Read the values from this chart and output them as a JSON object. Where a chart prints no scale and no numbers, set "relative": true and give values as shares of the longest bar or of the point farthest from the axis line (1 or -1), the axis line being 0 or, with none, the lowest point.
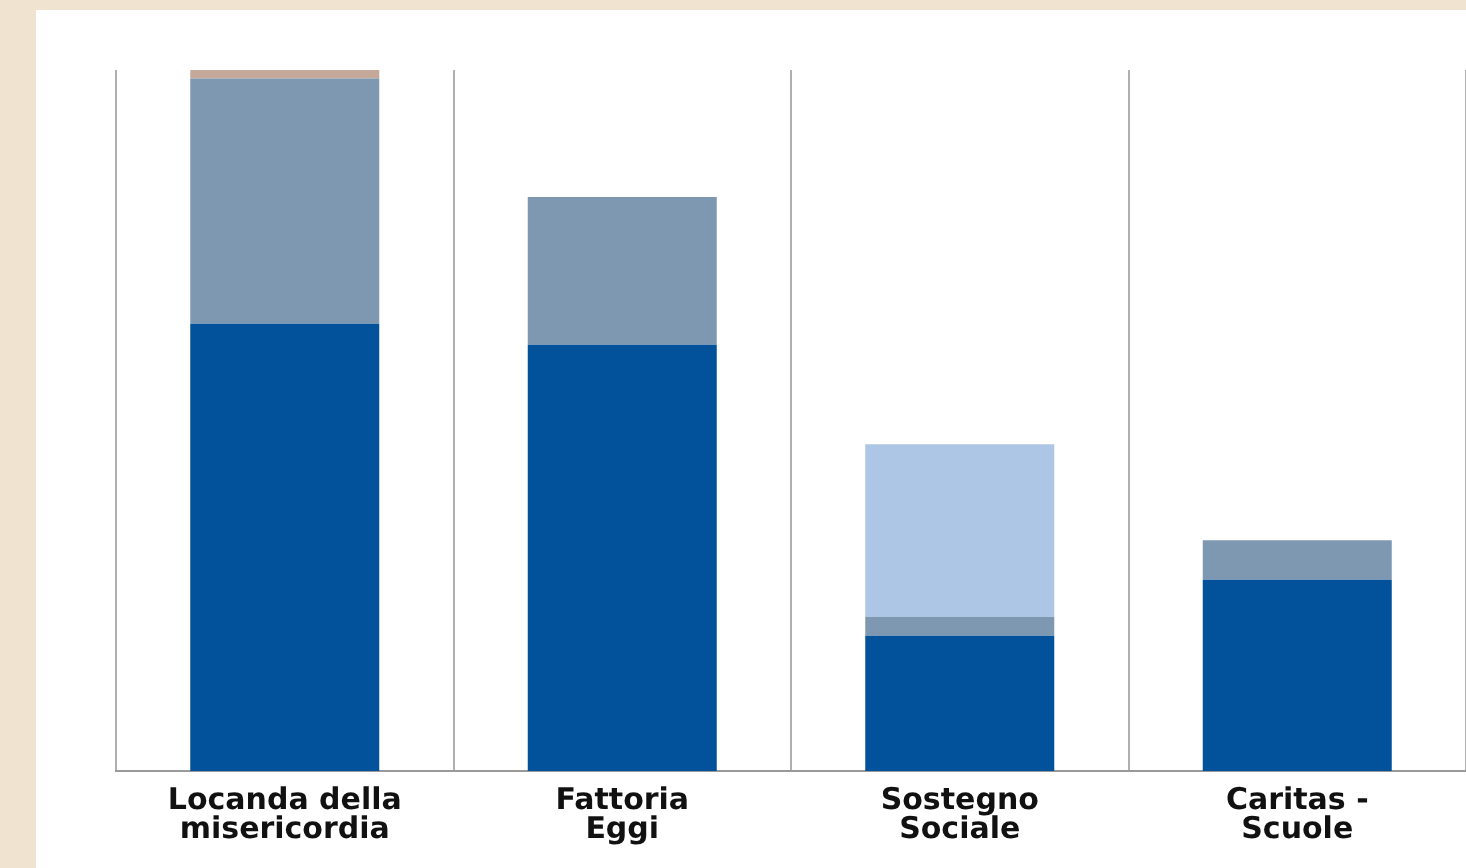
{
  "chart_data": {
    "type": "bar",
    "stacked": true,
    "relative": true,
    "grid": "x",
    "legend": false,
    "categories": [
      "Locanda della misericordia",
      "Fattoria Eggi",
      "Sostegno Sociale",
      "Caritas - Scuole"
    ],
    "series": [
      {
        "color": "#02519b",
        "values": [
          0.638,
          0.608,
          0.193,
          0.273
        ]
      },
      {
        "color": "#7f98b2",
        "values": [
          0.35,
          0.211,
          0.027,
          0.056
        ]
      },
      {
        "color": "#adc6e6",
        "values": [
          0,
          0,
          0.246,
          0
        ]
      },
      {
        "color": "#c4a89a",
        "values": [
          0.012,
          0,
          0,
          0
        ]
      }
    ]
  }
}
